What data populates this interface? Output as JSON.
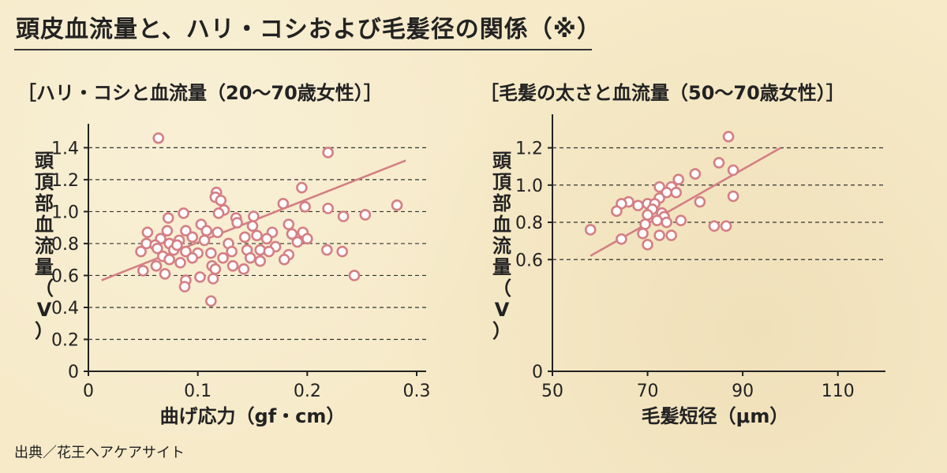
{
  "page": {
    "title": "頭皮血流量と、ハリ・コシおよび毛髪径の関係（※）",
    "source": "出典／花王ヘアケアサイト"
  },
  "colors": {
    "marker": "#d47f84",
    "background": "#f6eac8"
  },
  "chart_data": [
    {
      "type": "scatter",
      "title": "［ハリ・コシと血流量（20～70歳女性）］",
      "xlabel": "曲げ応力（gf・cm）",
      "ylabel": [
        "頭",
        "頂",
        "部",
        "血",
        "流",
        "量",
        "（",
        "V",
        "）"
      ],
      "xlim": [
        0,
        0.3
      ],
      "ylim": [
        0,
        1.55
      ],
      "xticks": [
        {
          "v": 0,
          "label": "0"
        },
        {
          "v": 0.1,
          "label": "0.1"
        },
        {
          "v": 0.2,
          "label": "0.2"
        },
        {
          "v": 0.3,
          "label": "0.3"
        }
      ],
      "yticks": [
        {
          "v": 0,
          "label": "0"
        },
        {
          "v": 0.2,
          "label": "0.2"
        },
        {
          "v": 0.4,
          "label": "0.4"
        },
        {
          "v": 0.6,
          "label": "0.6"
        },
        {
          "v": 0.8,
          "label": "0.8"
        },
        {
          "v": 1.0,
          "label": "1.0"
        },
        {
          "v": 1.2,
          "label": "1.2"
        },
        {
          "v": 1.4,
          "label": "1.4"
        }
      ],
      "grid": true,
      "trend": [
        [
          0.012,
          0.57
        ],
        [
          0.29,
          1.32
        ]
      ],
      "points": [
        [
          0.064,
          1.46
        ],
        [
          0.219,
          1.37
        ],
        [
          0.117,
          1.12
        ],
        [
          0.195,
          1.15
        ],
        [
          0.282,
          1.04
        ],
        [
          0.116,
          1.09
        ],
        [
          0.121,
          1.07
        ],
        [
          0.178,
          1.05
        ],
        [
          0.219,
          1.02
        ],
        [
          0.198,
          1.03
        ],
        [
          0.124,
          1.01
        ],
        [
          0.253,
          0.98
        ],
        [
          0.233,
          0.97
        ],
        [
          0.119,
          0.99
        ],
        [
          0.151,
          0.97
        ],
        [
          0.087,
          0.99
        ],
        [
          0.073,
          0.96
        ],
        [
          0.135,
          0.96
        ],
        [
          0.183,
          0.92
        ],
        [
          0.103,
          0.92
        ],
        [
          0.136,
          0.93
        ],
        [
          0.15,
          0.91
        ],
        [
          0.054,
          0.87
        ],
        [
          0.072,
          0.88
        ],
        [
          0.089,
          0.88
        ],
        [
          0.108,
          0.88
        ],
        [
          0.118,
          0.87
        ],
        [
          0.168,
          0.87
        ],
        [
          0.186,
          0.86
        ],
        [
          0.196,
          0.87
        ],
        [
          0.154,
          0.85
        ],
        [
          0.143,
          0.84
        ],
        [
          0.095,
          0.84
        ],
        [
          0.083,
          0.82
        ],
        [
          0.066,
          0.83
        ],
        [
          0.053,
          0.8
        ],
        [
          0.061,
          0.79
        ],
        [
          0.074,
          0.8
        ],
        [
          0.106,
          0.82
        ],
        [
          0.128,
          0.8
        ],
        [
          0.163,
          0.83
        ],
        [
          0.191,
          0.81
        ],
        [
          0.2,
          0.83
        ],
        [
          0.218,
          0.76
        ],
        [
          0.232,
          0.75
        ],
        [
          0.171,
          0.78
        ],
        [
          0.048,
          0.75
        ],
        [
          0.063,
          0.77
        ],
        [
          0.078,
          0.76
        ],
        [
          0.089,
          0.75
        ],
        [
          0.1,
          0.74
        ],
        [
          0.112,
          0.74
        ],
        [
          0.131,
          0.75
        ],
        [
          0.145,
          0.76
        ],
        [
          0.157,
          0.76
        ],
        [
          0.165,
          0.75
        ],
        [
          0.183,
          0.73
        ],
        [
          0.068,
          0.72
        ],
        [
          0.074,
          0.7
        ],
        [
          0.095,
          0.71
        ],
        [
          0.123,
          0.71
        ],
        [
          0.148,
          0.71
        ],
        [
          0.157,
          0.69
        ],
        [
          0.179,
          0.7
        ],
        [
          0.084,
          0.68
        ],
        [
          0.113,
          0.66
        ],
        [
          0.132,
          0.66
        ],
        [
          0.062,
          0.66
        ],
        [
          0.05,
          0.63
        ],
        [
          0.116,
          0.64
        ],
        [
          0.142,
          0.64
        ],
        [
          0.07,
          0.61
        ],
        [
          0.102,
          0.59
        ],
        [
          0.114,
          0.58
        ],
        [
          0.243,
          0.6
        ],
        [
          0.089,
          0.57
        ],
        [
          0.088,
          0.53
        ],
        [
          0.112,
          0.44
        ],
        [
          0.081,
          0.79
        ]
      ]
    },
    {
      "type": "scatter",
      "title": "［毛髪の太さと血流量（50～70歳女性）］",
      "xlabel": "毛髪短径（μm）",
      "ylabel": [
        "頭",
        "頂",
        "部",
        "血",
        "流",
        "量",
        "（",
        "V",
        "）"
      ],
      "xlim": [
        50,
        120
      ],
      "ylim": [
        0,
        1.38
      ],
      "xticks": [
        {
          "v": 50,
          "label": "50"
        },
        {
          "v": 70,
          "label": "70"
        },
        {
          "v": 90,
          "label": "90"
        },
        {
          "v": 110,
          "label": "110"
        }
      ],
      "yticks": [
        {
          "v": 0,
          "label": "0"
        },
        {
          "v": 0.6,
          "label": "0.6"
        },
        {
          "v": 0.8,
          "label": "0.8"
        },
        {
          "v": 1.0,
          "label": "1.0"
        },
        {
          "v": 1.2,
          "label": "1.2"
        }
      ],
      "grid": true,
      "trend": [
        [
          58,
          0.62
        ],
        [
          98,
          1.2
        ]
      ],
      "points": [
        [
          87,
          1.26
        ],
        [
          85,
          1.12
        ],
        [
          88,
          1.08
        ],
        [
          80,
          1.06
        ],
        [
          76.5,
          1.03
        ],
        [
          72.5,
          0.99
        ],
        [
          75,
          0.99
        ],
        [
          74,
          0.96
        ],
        [
          76,
          0.96
        ],
        [
          72.5,
          0.93
        ],
        [
          88,
          0.94
        ],
        [
          81,
          0.91
        ],
        [
          66,
          0.91
        ],
        [
          64.5,
          0.9
        ],
        [
          70,
          0.9
        ],
        [
          71.5,
          0.9
        ],
        [
          68,
          0.89
        ],
        [
          71,
          0.87
        ],
        [
          63.5,
          0.86
        ],
        [
          73,
          0.85
        ],
        [
          70,
          0.84
        ],
        [
          73.5,
          0.83
        ],
        [
          77,
          0.81
        ],
        [
          72,
          0.81
        ],
        [
          74,
          0.8
        ],
        [
          69.5,
          0.79
        ],
        [
          84,
          0.78
        ],
        [
          86.5,
          0.78
        ],
        [
          58,
          0.76
        ],
        [
          69,
          0.74
        ],
        [
          72.5,
          0.73
        ],
        [
          75,
          0.73
        ],
        [
          64.5,
          0.71
        ],
        [
          70,
          0.68
        ]
      ]
    }
  ]
}
